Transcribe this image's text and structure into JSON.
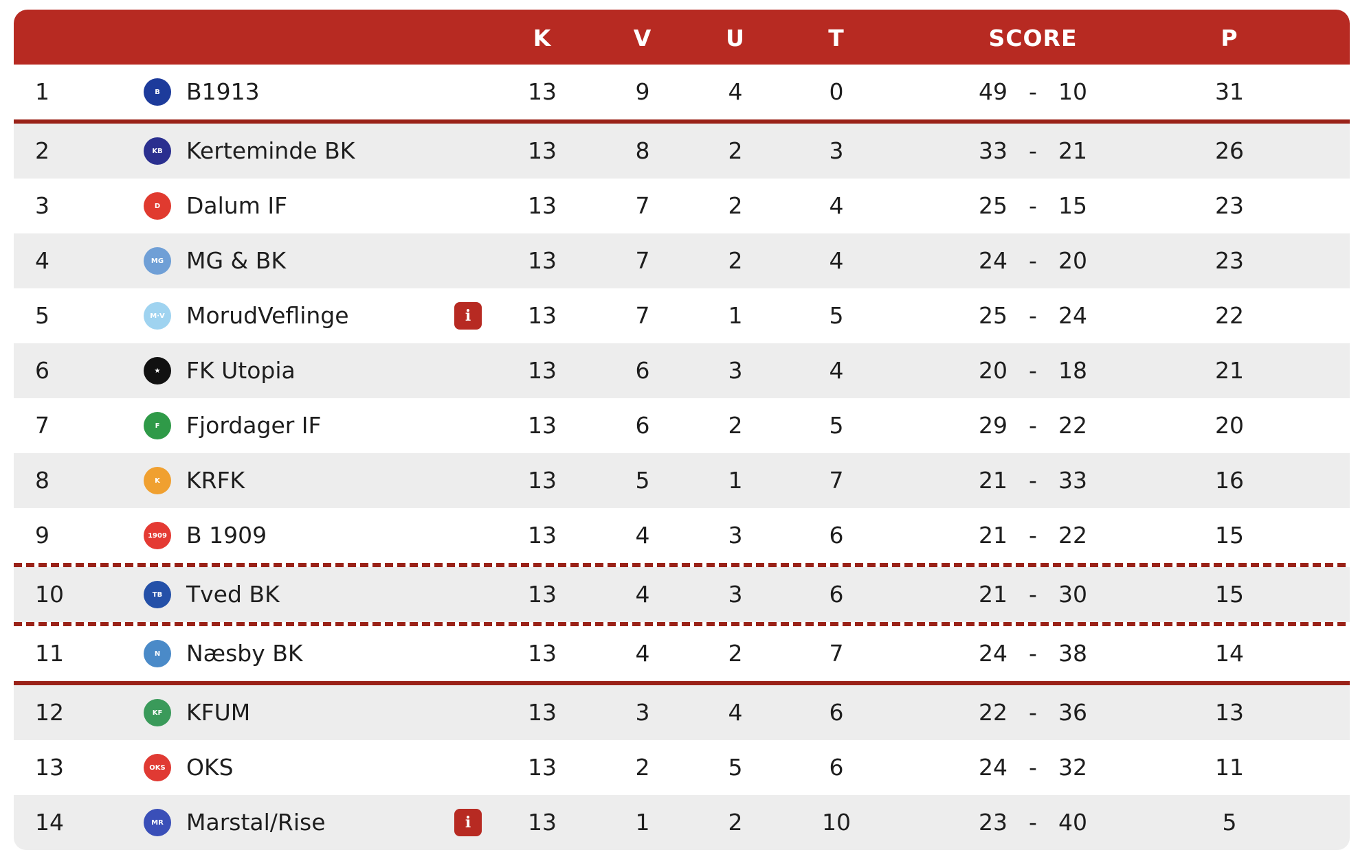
{
  "colors": {
    "header": "#b72a22",
    "separator": "#9a2218",
    "alt_row": "#ededed"
  },
  "header": {
    "name": "",
    "k": "K",
    "v": "V",
    "u": "U",
    "t": "T",
    "score": "SCORE",
    "p": "P"
  },
  "rows": [
    {
      "rank": "1",
      "team": "B1913",
      "logo": "B",
      "logo_color": "#1d3b9b",
      "info": false,
      "k": "13",
      "v": "9",
      "u": "4",
      "t": "0",
      "gf": "49",
      "ga": "10",
      "p": "31",
      "sep_after": "solid"
    },
    {
      "rank": "2",
      "team": "Kerteminde BK",
      "logo": "KB",
      "logo_color": "#2a2f8f",
      "info": false,
      "k": "13",
      "v": "8",
      "u": "2",
      "t": "3",
      "gf": "33",
      "ga": "21",
      "p": "26"
    },
    {
      "rank": "3",
      "team": "Dalum IF",
      "logo": "D",
      "logo_color": "#e03a2f",
      "info": false,
      "k": "13",
      "v": "7",
      "u": "2",
      "t": "4",
      "gf": "25",
      "ga": "15",
      "p": "23"
    },
    {
      "rank": "4",
      "team": "MG & BK",
      "logo": "MG",
      "logo_color": "#6f9fd6",
      "info": false,
      "k": "13",
      "v": "7",
      "u": "2",
      "t": "4",
      "gf": "24",
      "ga": "20",
      "p": "23"
    },
    {
      "rank": "5",
      "team": "MorudVeflinge",
      "logo": "M·V",
      "logo_color": "#9fd3f0",
      "info": true,
      "k": "13",
      "v": "7",
      "u": "1",
      "t": "5",
      "gf": "25",
      "ga": "24",
      "p": "22"
    },
    {
      "rank": "6",
      "team": "FK Utopia",
      "logo": "★",
      "logo_color": "#111111",
      "info": false,
      "k": "13",
      "v": "6",
      "u": "3",
      "t": "4",
      "gf": "20",
      "ga": "18",
      "p": "21"
    },
    {
      "rank": "7",
      "team": "Fjordager IF",
      "logo": "F",
      "logo_color": "#2f9a48",
      "info": false,
      "k": "13",
      "v": "6",
      "u": "2",
      "t": "5",
      "gf": "29",
      "ga": "22",
      "p": "20"
    },
    {
      "rank": "8",
      "team": "KRFK",
      "logo": "K",
      "logo_color": "#f0a030",
      "info": false,
      "k": "13",
      "v": "5",
      "u": "1",
      "t": "7",
      "gf": "21",
      "ga": "33",
      "p": "16"
    },
    {
      "rank": "9",
      "team": "B 1909",
      "logo": "1909",
      "logo_color": "#e43a33",
      "info": false,
      "k": "13",
      "v": "4",
      "u": "3",
      "t": "6",
      "gf": "21",
      "ga": "22",
      "p": "15",
      "sep_after": "dashed"
    },
    {
      "rank": "10",
      "team": "Tved BK",
      "logo": "TB",
      "logo_color": "#2450a8",
      "info": false,
      "k": "13",
      "v": "4",
      "u": "3",
      "t": "6",
      "gf": "21",
      "ga": "30",
      "p": "15",
      "sep_after": "dashed"
    },
    {
      "rank": "11",
      "team": "Næsby BK",
      "logo": "N",
      "logo_color": "#4a8ac8",
      "info": false,
      "k": "13",
      "v": "4",
      "u": "2",
      "t": "7",
      "gf": "24",
      "ga": "38",
      "p": "14",
      "sep_after": "solid"
    },
    {
      "rank": "12",
      "team": "KFUM",
      "logo": "KF",
      "logo_color": "#3a9a5a",
      "info": false,
      "k": "13",
      "v": "3",
      "u": "4",
      "t": "6",
      "gf": "22",
      "ga": "36",
      "p": "13"
    },
    {
      "rank": "13",
      "team": "OKS",
      "logo": "OKS",
      "logo_color": "#e03a33",
      "info": false,
      "k": "13",
      "v": "2",
      "u": "5",
      "t": "6",
      "gf": "24",
      "ga": "32",
      "p": "11"
    },
    {
      "rank": "14",
      "team": "Marstal/Rise",
      "logo": "MR",
      "logo_color": "#3a4fb8",
      "info": true,
      "k": "13",
      "v": "1",
      "u": "2",
      "t": "10",
      "gf": "23",
      "ga": "40",
      "p": "5"
    }
  ],
  "score_separator": "-",
  "info_label": "i"
}
